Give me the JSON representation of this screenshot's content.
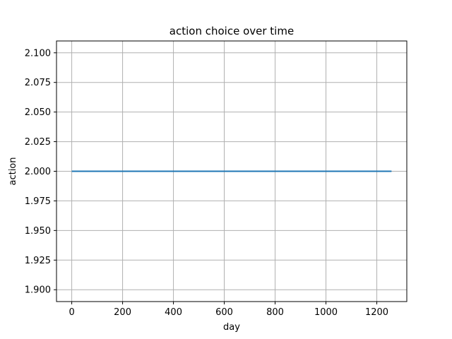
{
  "chart_data": {
    "type": "line",
    "title": "action choice over time",
    "xlabel": "day",
    "ylabel": "action",
    "xlim": [
      -60,
      1318
    ],
    "ylim": [
      1.89,
      2.11
    ],
    "xticks": [
      0,
      200,
      400,
      600,
      800,
      1000,
      1200
    ],
    "xtick_labels": [
      "0",
      "200",
      "400",
      "600",
      "800",
      "1000",
      "1200"
    ],
    "yticks": [
      1.9,
      1.925,
      1.95,
      1.975,
      2.0,
      2.025,
      2.05,
      2.075,
      2.1
    ],
    "ytick_labels": [
      "1.900",
      "1.925",
      "1.950",
      "1.975",
      "2.000",
      "2.025",
      "2.050",
      "2.075",
      "2.100"
    ],
    "grid": true,
    "series": [
      {
        "color": "#1f77b4",
        "x": [
          0,
          1258
        ],
        "y": [
          2.0,
          2.0
        ]
      }
    ]
  }
}
